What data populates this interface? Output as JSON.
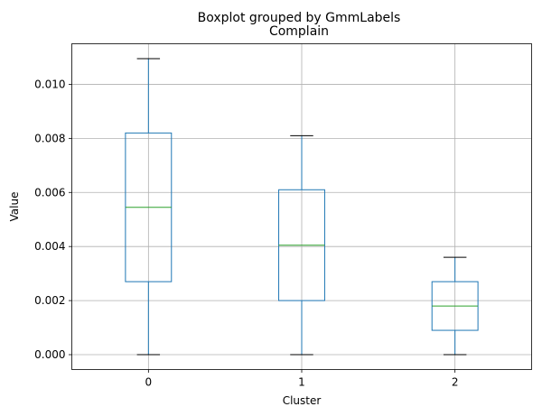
{
  "chart_data": {
    "type": "box",
    "suptitle": "Boxplot grouped by GmmLabels",
    "title": "Complain",
    "xlabel": "Cluster",
    "ylabel": "Value",
    "categories": [
      "0",
      "1",
      "2"
    ],
    "boxes": [
      {
        "whislo": 0.0,
        "q1": 0.0027,
        "med": 0.00545,
        "q3": 0.0082,
        "whishi": 0.01095
      },
      {
        "whislo": 0.0,
        "q1": 0.002,
        "med": 0.00405,
        "q3": 0.0061,
        "whishi": 0.0081
      },
      {
        "whislo": 0.0,
        "q1": 0.0009,
        "med": 0.0018,
        "q3": 0.0027,
        "whishi": 0.0036
      }
    ],
    "yticks": [
      "0.000",
      "0.002",
      "0.004",
      "0.006",
      "0.008",
      "0.010"
    ],
    "ylim": [
      -0.00055,
      0.0115
    ],
    "grid": true,
    "colors": {
      "box": "#1f77b4",
      "median": "#2ca02c",
      "whisker": "#1f77b4",
      "cap": "#000000",
      "grid": "#b0b0b0"
    }
  }
}
